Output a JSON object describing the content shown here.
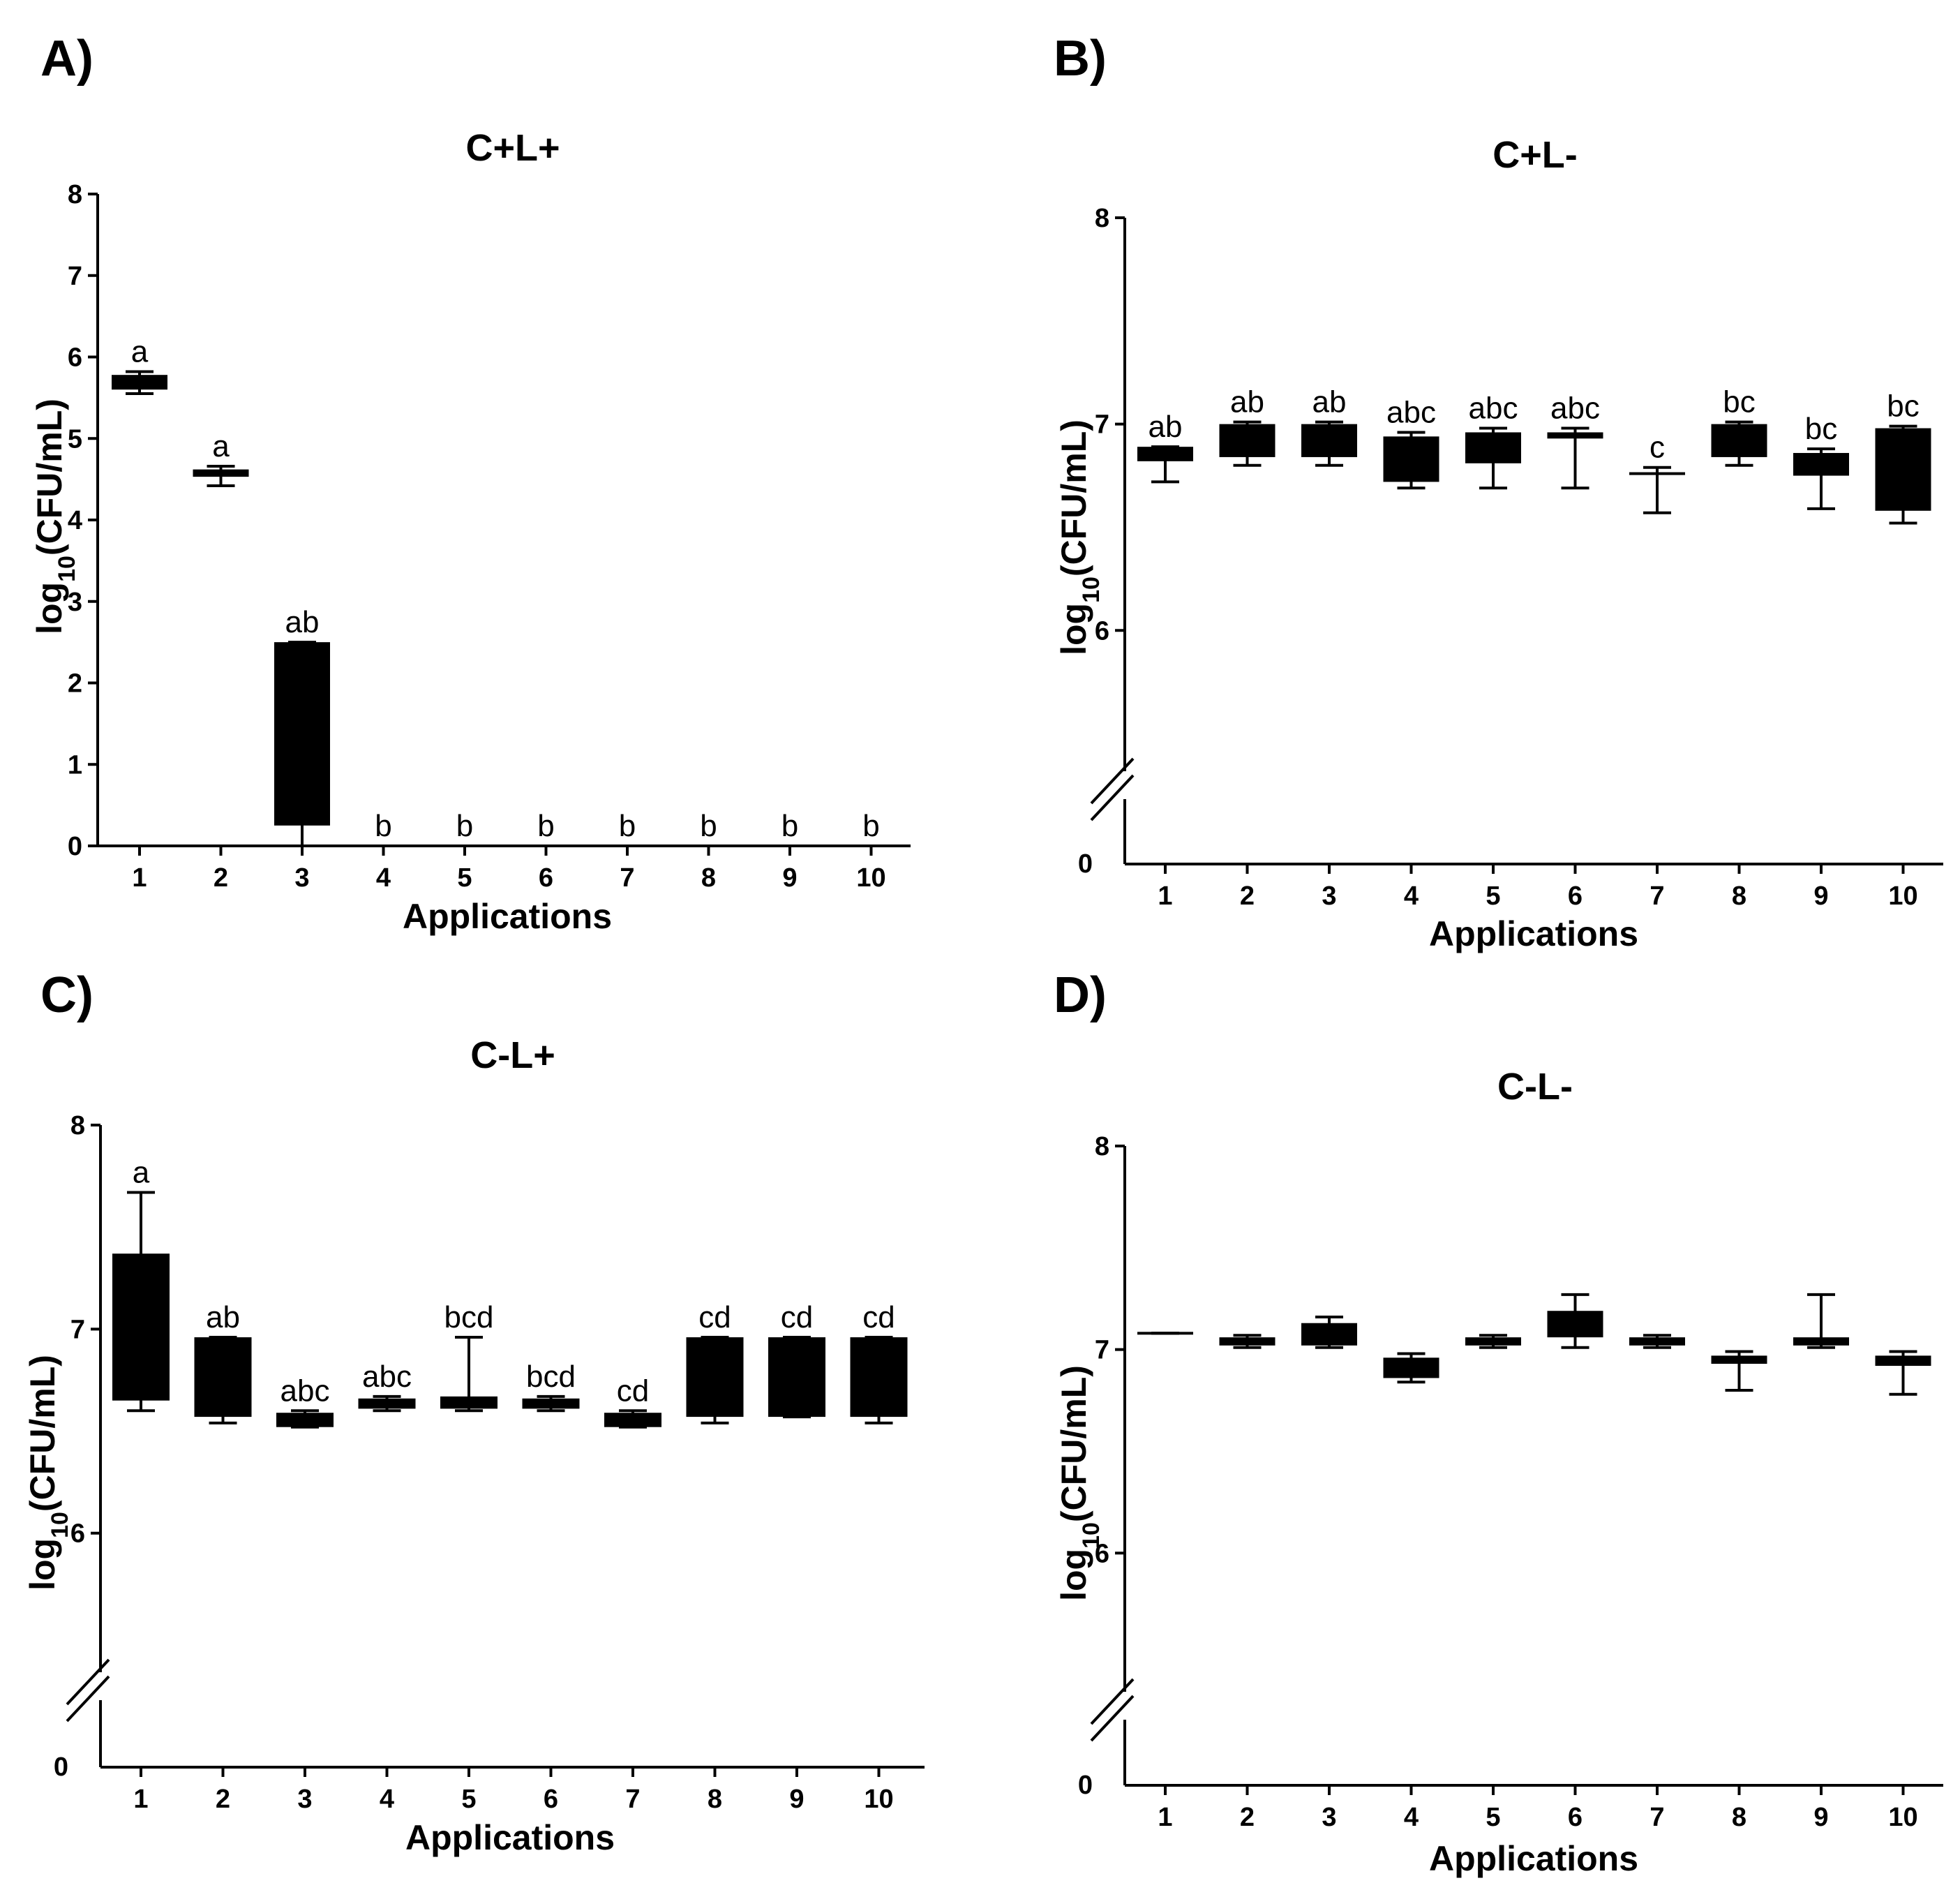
{
  "chart_data": [
    {
      "panel": "A)",
      "title": "C+L+",
      "type": "boxplot",
      "xlabel": "Applications",
      "ylabel_main": "log",
      "ylabel_sub": "10",
      "ylabel_rest": "(CFU/mL)",
      "ylim": [
        0,
        8
      ],
      "yticks": [
        0,
        1,
        2,
        3,
        4,
        5,
        6,
        7,
        8
      ],
      "axis_break": false,
      "categories": [
        "1",
        "2",
        "3",
        "4",
        "5",
        "6",
        "7",
        "8",
        "9",
        "10"
      ],
      "boxes": [
        {
          "min": 5.55,
          "q1": 5.6,
          "q3": 5.78,
          "max": 5.82
        },
        {
          "min": 4.42,
          "q1": 4.53,
          "q3": 4.62,
          "max": 4.66
        },
        {
          "min": 0.0,
          "q1": 0.25,
          "q3": 2.5,
          "max": 2.5
        },
        {
          "min": 0,
          "q1": 0,
          "q3": 0,
          "max": 0
        },
        {
          "min": 0,
          "q1": 0,
          "q3": 0,
          "max": 0
        },
        {
          "min": 0,
          "q1": 0,
          "q3": 0,
          "max": 0
        },
        {
          "min": 0,
          "q1": 0,
          "q3": 0,
          "max": 0
        },
        {
          "min": 0,
          "q1": 0,
          "q3": 0,
          "max": 0
        },
        {
          "min": 0,
          "q1": 0,
          "q3": 0,
          "max": 0
        },
        {
          "min": 0,
          "q1": 0,
          "q3": 0,
          "max": 0
        }
      ],
      "letters": [
        "a",
        "a",
        "ab",
        "b",
        "b",
        "b",
        "b",
        "b",
        "b",
        "b"
      ]
    },
    {
      "panel": "B)",
      "title": "C+L-",
      "type": "boxplot",
      "xlabel": "Applications",
      "ylabel_main": "log",
      "ylabel_sub": "10",
      "ylabel_rest": "(CFU/mL)",
      "ylim": [
        5.25,
        8
      ],
      "yticks": [
        6,
        7,
        8
      ],
      "axis_break": true,
      "axis_zero_label": "0",
      "categories": [
        "1",
        "2",
        "3",
        "4",
        "5",
        "6",
        "7",
        "8",
        "9",
        "10"
      ],
      "boxes": [
        {
          "min": 6.72,
          "q1": 6.82,
          "q3": 6.89,
          "max": 6.89
        },
        {
          "min": 6.8,
          "q1": 6.84,
          "q3": 7.0,
          "max": 7.01
        },
        {
          "min": 6.8,
          "q1": 6.84,
          "q3": 7.0,
          "max": 7.01
        },
        {
          "min": 6.69,
          "q1": 6.72,
          "q3": 6.94,
          "max": 6.96
        },
        {
          "min": 6.69,
          "q1": 6.81,
          "q3": 6.96,
          "max": 6.98
        },
        {
          "min": 6.69,
          "q1": 6.93,
          "q3": 6.96,
          "max": 6.98
        },
        {
          "min": 6.57,
          "q1": 6.75,
          "q3": 6.76,
          "max": 6.79
        },
        {
          "min": 6.8,
          "q1": 6.84,
          "q3": 7.0,
          "max": 7.01
        },
        {
          "min": 6.59,
          "q1": 6.75,
          "q3": 6.86,
          "max": 6.88
        },
        {
          "min": 6.52,
          "q1": 6.58,
          "q3": 6.98,
          "max": 6.99
        }
      ],
      "letters": [
        "ab",
        "ab",
        "ab",
        "abc",
        "abc",
        "abc",
        "c",
        "bc",
        "bc",
        "bc"
      ]
    },
    {
      "panel": "C)",
      "title": "C-L+",
      "type": "boxplot",
      "xlabel": "Applications",
      "ylabel_main": "log",
      "ylabel_sub": "10",
      "ylabel_rest": "(CFU/mL)",
      "ylim": [
        5.25,
        8
      ],
      "yticks": [
        6,
        7,
        8
      ],
      "axis_break": true,
      "axis_zero_label": "0",
      "categories": [
        "1",
        "2",
        "3",
        "4",
        "5",
        "6",
        "7",
        "8",
        "9",
        "10"
      ],
      "boxes": [
        {
          "min": 6.6,
          "q1": 6.65,
          "q3": 7.37,
          "max": 7.67
        },
        {
          "min": 6.54,
          "q1": 6.57,
          "q3": 6.96,
          "max": 6.96
        },
        {
          "min": 6.52,
          "q1": 6.52,
          "q3": 6.59,
          "max": 6.6
        },
        {
          "min": 6.6,
          "q1": 6.61,
          "q3": 6.66,
          "max": 6.67
        },
        {
          "min": 6.6,
          "q1": 6.61,
          "q3": 6.67,
          "max": 6.96
        },
        {
          "min": 6.6,
          "q1": 6.61,
          "q3": 6.66,
          "max": 6.67
        },
        {
          "min": 6.52,
          "q1": 6.52,
          "q3": 6.59,
          "max": 6.6
        },
        {
          "min": 6.54,
          "q1": 6.57,
          "q3": 6.96,
          "max": 6.96
        },
        {
          "min": 6.57,
          "q1": 6.57,
          "q3": 6.96,
          "max": 6.96
        },
        {
          "min": 6.54,
          "q1": 6.57,
          "q3": 6.96,
          "max": 6.96
        }
      ],
      "letters": [
        "a",
        "ab",
        "abc",
        "abc",
        "bcd",
        "bcd",
        "cd",
        "cd",
        "cd",
        "cd"
      ]
    },
    {
      "panel": "D)",
      "title": "C-L-",
      "type": "boxplot",
      "xlabel": "Applications",
      "ylabel_main": "log",
      "ylabel_sub": "10",
      "ylabel_rest": "(CFU/mL)",
      "ylim": [
        5.25,
        8
      ],
      "yticks": [
        6,
        7,
        8
      ],
      "axis_break": true,
      "axis_zero_label": "0",
      "categories": [
        "1",
        "2",
        "3",
        "4",
        "5",
        "6",
        "7",
        "8",
        "9",
        "10"
      ],
      "boxes": [
        {
          "min": 7.08,
          "q1": 7.08,
          "q3": 7.08,
          "max": 7.08
        },
        {
          "min": 7.01,
          "q1": 7.02,
          "q3": 7.06,
          "max": 7.07
        },
        {
          "min": 7.01,
          "q1": 7.02,
          "q3": 7.13,
          "max": 7.16
        },
        {
          "min": 6.84,
          "q1": 6.86,
          "q3": 6.96,
          "max": 6.98
        },
        {
          "min": 7.01,
          "q1": 7.02,
          "q3": 7.06,
          "max": 7.07
        },
        {
          "min": 7.01,
          "q1": 7.06,
          "q3": 7.19,
          "max": 7.27
        },
        {
          "min": 7.01,
          "q1": 7.02,
          "q3": 7.06,
          "max": 7.07
        },
        {
          "min": 6.8,
          "q1": 6.93,
          "q3": 6.97,
          "max": 6.99
        },
        {
          "min": 7.01,
          "q1": 7.02,
          "q3": 7.06,
          "max": 7.27
        },
        {
          "min": 6.78,
          "q1": 6.92,
          "q3": 6.97,
          "max": 6.99
        }
      ],
      "letters": []
    }
  ]
}
